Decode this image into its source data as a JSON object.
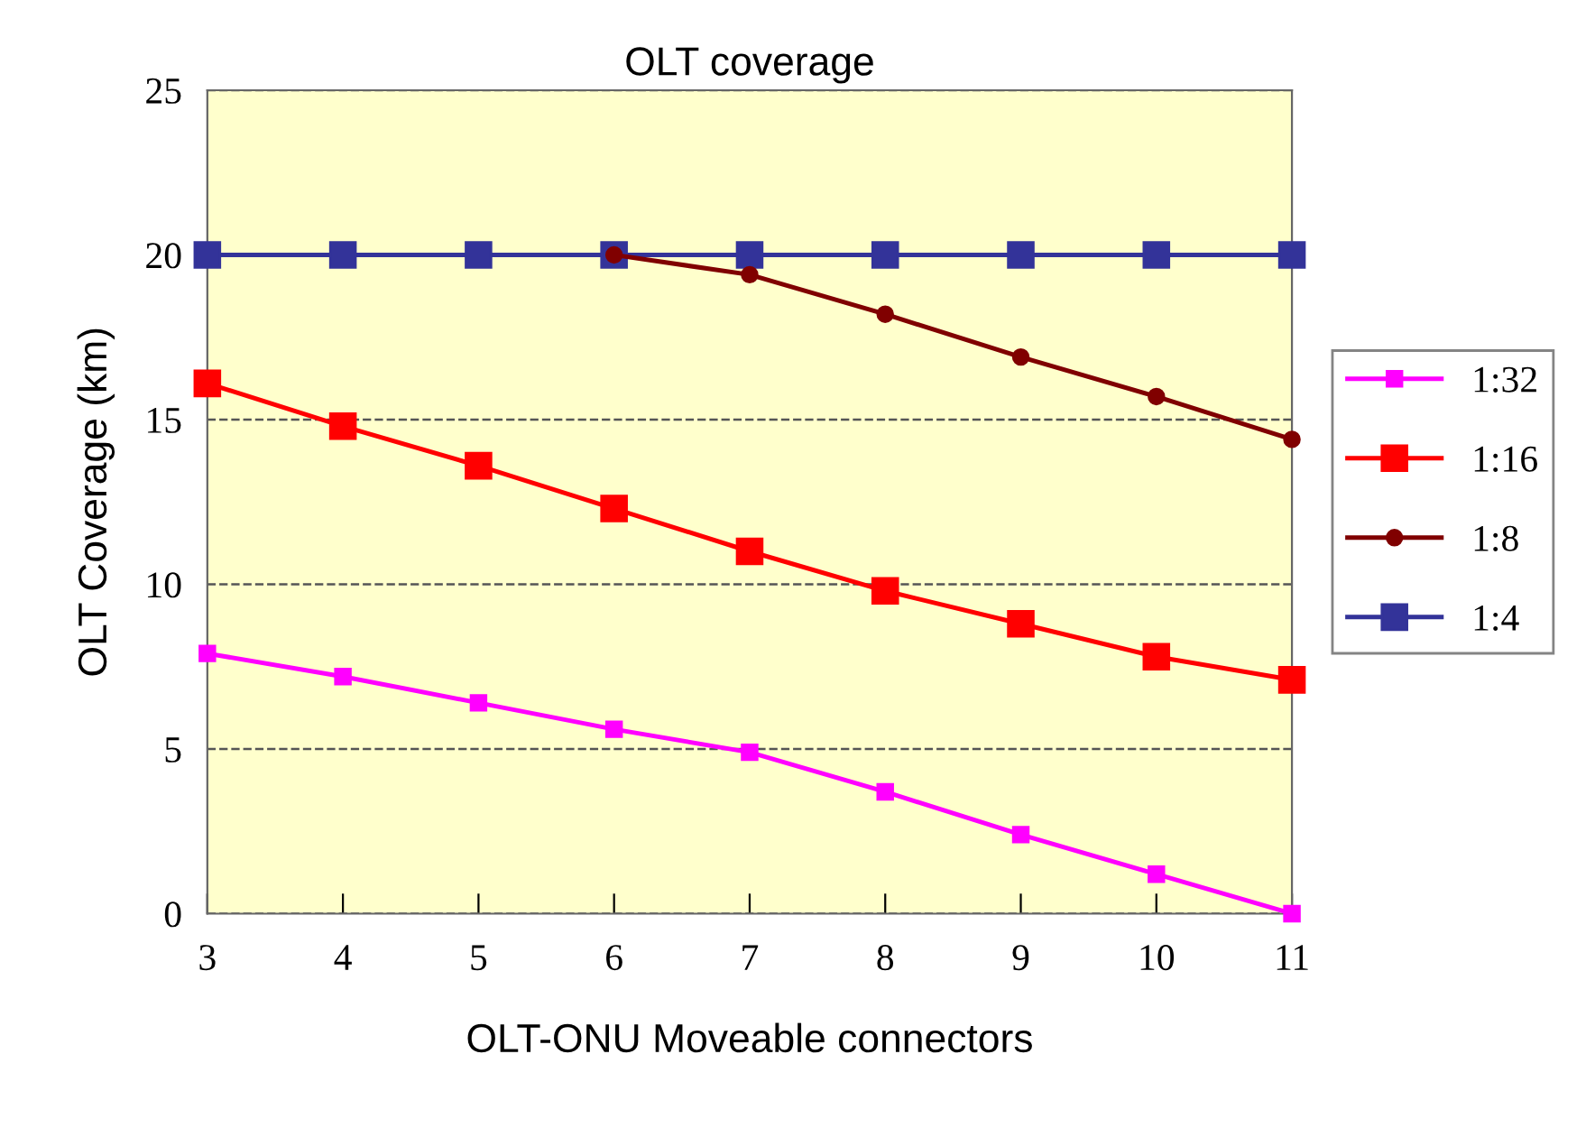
{
  "chart_data": {
    "type": "line",
    "title": "OLT coverage",
    "xlabel": "OLT-ONU Moveable connectors",
    "ylabel": "OLT Coverage (km)",
    "x": [
      3,
      4,
      5,
      6,
      7,
      8,
      9,
      10,
      11
    ],
    "xlim": [
      3,
      11
    ],
    "xticks": [
      3,
      4,
      5,
      6,
      7,
      8,
      9,
      10,
      11
    ],
    "ylim": [
      0,
      25
    ],
    "yticks": [
      0,
      5,
      10,
      15,
      20,
      25
    ],
    "grid": "y",
    "legend": "right",
    "marker": "square",
    "line_style": "solid",
    "series": [
      {
        "name": "1:32",
        "color": "#ff00ff",
        "values": [
          7.9,
          7.2,
          6.4,
          5.6,
          4.9,
          3.7,
          2.4,
          1.2,
          0
        ]
      },
      {
        "name": "1:16",
        "color": "#ff0000",
        "values": [
          16.1,
          14.8,
          13.6,
          12.3,
          11.0,
          9.8,
          8.8,
          7.8,
          7.1
        ]
      },
      {
        "name": "1:8",
        "color": "#800000",
        "marker": "circle",
        "values": [
          null,
          null,
          null,
          20,
          19.4,
          18.2,
          16.9,
          15.7,
          14.4
        ]
      },
      {
        "name": "1:4",
        "color": "#333399",
        "values": [
          20,
          20,
          20,
          20,
          20,
          20,
          20,
          20,
          20
        ]
      }
    ]
  }
}
